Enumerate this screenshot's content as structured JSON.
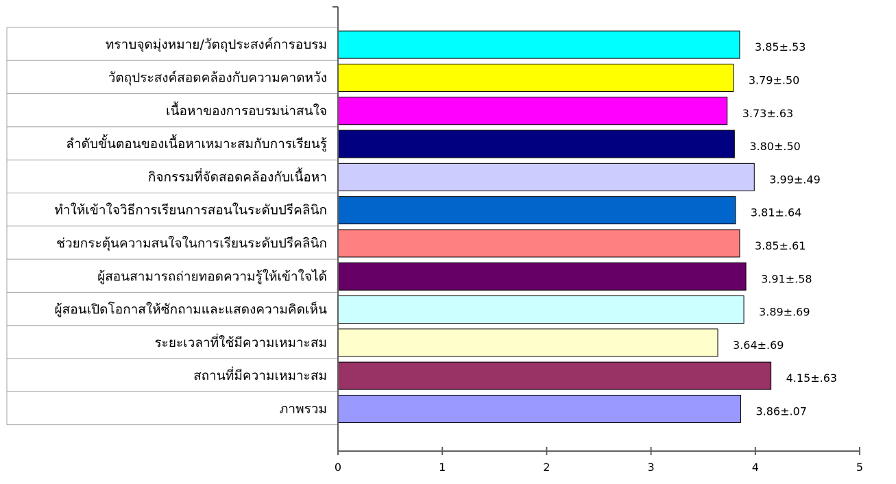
{
  "chart_data": {
    "type": "bar",
    "orientation": "horizontal",
    "categories": [
      "ทราบจุดมุ่งหมาย/วัตถุประสงค์การอบรม",
      "วัตถุประสงค์สอดคล้องกับความคาดหวัง",
      "เนื้อหาของการอบรมน่าสนใจ",
      "ลำดับขั้นตอนของเนื้อหาเหมาะสมกับการเรียนรู้",
      "กิจกรรมที่จัดสอดคล้องกับเนื้อหา",
      "ทำให้เข้าใจวิธีการเรียนการสอนในระดับปรีคลินิก",
      "ช่วยกระตุ้นความสนใจในการเรียนระดับปรีคลินิก",
      "ผู้สอนสามารถถ่ายทอดความรู้ให้เข้าใจได้",
      "ผู้สอนเปิดโอกาสให้ซักถามและแสดงความคิดเห็น",
      "ระยะเวลาที่ใช้มีความเหมาะสม",
      "สถานที่มีความเหมาะสม",
      "ภาพรวม"
    ],
    "values": [
      3.85,
      3.79,
      3.73,
      3.8,
      3.99,
      3.81,
      3.85,
      3.91,
      3.89,
      3.64,
      4.15,
      3.86
    ],
    "data_labels": [
      "3.85±.53",
      "3.79±.50",
      "3.73±.63",
      "3.80±.50",
      "3.99±.49",
      "3.81±.64",
      "3.85±.61",
      "3.91±.58",
      "3.89±.69",
      "3.64±.69",
      "4.15±.63",
      "3.86±.07"
    ],
    "colors": [
      "#00FFFF",
      "#FFFF00",
      "#FF00FF",
      "#000080",
      "#CCCCFF",
      "#0066CC",
      "#FF8080",
      "#660066",
      "#CCFFFF",
      "#FFFFCC",
      "#993366",
      "#9999FF"
    ],
    "xlim": [
      0,
      5
    ],
    "xticks": [
      "0",
      "1",
      "2",
      "3",
      "4",
      "5"
    ],
    "title": "",
    "xlabel": "",
    "ylabel": "",
    "grid": false,
    "legend": "none"
  }
}
